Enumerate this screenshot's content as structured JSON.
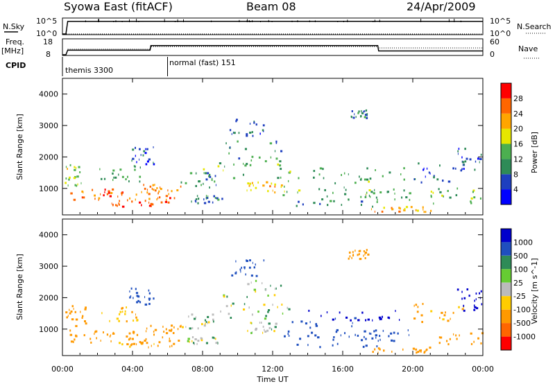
{
  "header": {
    "station": "Syowa East (fitACF)",
    "beam": "Beam 08",
    "date": "24/Apr/2009"
  },
  "top_panels": {
    "nsky_label": "N.Sky",
    "nsky_ticks": [
      "10^5",
      "10^0"
    ],
    "nsearch_label": "N.Search",
    "nsearch_ticks": [
      "10^5",
      "10^0"
    ],
    "freq_label": "Freq.",
    "freq_unit": "[MHz]",
    "freq_ticks": [
      "18",
      "8"
    ],
    "nave_label": "Nave",
    "nave_ticks": [
      "60",
      "0"
    ],
    "cpid_label": "CPID",
    "cpid_segments": [
      {
        "label": "themis 3300",
        "start_hour": 0,
        "end_hour": 6
      },
      {
        "label": "normal (fast) 151",
        "start_hour": 6,
        "end_hour": 24
      }
    ]
  },
  "x_axis": {
    "label": "Time UT",
    "tick_labels": [
      "00:00",
      "04:00",
      "08:00",
      "12:00",
      "16:00",
      "20:00",
      "00:00"
    ],
    "range_hours": [
      0,
      24
    ]
  },
  "colors": {
    "power": [
      "#0000ff",
      "#1e3fbf",
      "#2e8b57",
      "#4caf50",
      "#e6e600",
      "#ffa500",
      "#ff6600",
      "#ff0000"
    ],
    "velocity": [
      "#0000cc",
      "#1f4fbf",
      "#2e8b57",
      "#66cc33",
      "#bbbbbb",
      "#ffcc00",
      "#ff9900",
      "#ff6600",
      "#ff0000"
    ]
  },
  "chart_data": [
    {
      "type": "line",
      "title": "",
      "series": [
        {
          "name": "N.Sky",
          "x": [
            0,
            0.2,
            0.3,
            5,
            10,
            15,
            20,
            23.9,
            24
          ],
          "y": [
            1,
            1,
            20000,
            22000,
            21000,
            22000,
            21000,
            20000,
            20000
          ]
        },
        {
          "name": "N.Search",
          "x": [
            0,
            24
          ],
          "y": [
            1,
            1
          ]
        }
      ],
      "xlim": [
        0,
        24
      ],
      "ylim": [
        1,
        100000
      ],
      "yscale": "log"
    },
    {
      "type": "line",
      "title": "",
      "series": [
        {
          "name": "Freq.",
          "x": [
            0,
            0.2,
            0.3,
            5,
            5.05,
            18,
            18.05,
            24
          ],
          "y": [
            8,
            8,
            11,
            11,
            14,
            14,
            10.5,
            10.5
          ]
        },
        {
          "name": "Nave",
          "x": [
            0.3,
            5,
            5.05,
            18,
            18.05,
            24
          ],
          "y": [
            22,
            22,
            32,
            32,
            27,
            27
          ]
        }
      ],
      "xlim": [
        0,
        24
      ],
      "ylim": [
        8,
        18
      ]
    },
    {
      "type": "heatmap",
      "title": "",
      "ylabel": "Slant Range [km]",
      "xlabel": "",
      "ylim": [
        180,
        4500
      ],
      "yticks": [
        1000,
        2000,
        3000,
        4000
      ],
      "xlim": [
        0,
        24
      ],
      "colorbar": {
        "label": "Power [dB]",
        "ticks": [
          4,
          8,
          12,
          16,
          20,
          24,
          28
        ],
        "range": [
          0,
          32
        ]
      },
      "regions": [
        {
          "t0": 0.1,
          "t1": 1.3,
          "r0": 1100,
          "r1": 1800,
          "v": 17
        },
        {
          "t0": 0.2,
          "t1": 5.0,
          "r0": 800,
          "r1": 1000,
          "v": 25
        },
        {
          "t0": 0.3,
          "t1": 6.6,
          "r0": 600,
          "r1": 800,
          "v": 26
        },
        {
          "t0": 2.8,
          "t1": 6.4,
          "r0": 450,
          "r1": 650,
          "v": 28
        },
        {
          "t0": 4.6,
          "t1": 6.8,
          "r0": 850,
          "r1": 1150,
          "v": 24
        },
        {
          "t0": 2.0,
          "t1": 4.5,
          "r0": 1250,
          "r1": 1750,
          "v": 12
        },
        {
          "t0": 3.8,
          "t1": 5.2,
          "r0": 1800,
          "r1": 2350,
          "v": 6
        },
        {
          "t0": 6.7,
          "t1": 8.8,
          "r0": 1050,
          "r1": 1550,
          "v": 11
        },
        {
          "t0": 7.0,
          "t1": 9.5,
          "r0": 550,
          "r1": 800,
          "v": 9
        },
        {
          "t0": 8.0,
          "t1": 13.0,
          "r0": 1350,
          "r1": 1850,
          "v": 14
        },
        {
          "t0": 9.0,
          "t1": 12.5,
          "r0": 1800,
          "r1": 2700,
          "v": 10
        },
        {
          "t0": 9.5,
          "t1": 11.5,
          "r0": 2700,
          "r1": 3250,
          "v": 7
        },
        {
          "t0": 10.5,
          "t1": 12.5,
          "r0": 900,
          "r1": 1250,
          "v": 21
        },
        {
          "t0": 12.5,
          "t1": 17.5,
          "r0": 800,
          "r1": 1400,
          "v": 13
        },
        {
          "t0": 13.0,
          "t1": 18.0,
          "r0": 450,
          "r1": 900,
          "v": 10
        },
        {
          "t0": 14.0,
          "t1": 19.5,
          "r0": 1300,
          "r1": 1700,
          "v": 12
        },
        {
          "t0": 16.3,
          "t1": 17.4,
          "r0": 3250,
          "r1": 3550,
          "v": 9
        },
        {
          "t0": 17.5,
          "t1": 21.0,
          "r0": 280,
          "r1": 450,
          "v": 22
        },
        {
          "t0": 17.0,
          "t1": 20.0,
          "r0": 650,
          "r1": 1000,
          "v": 13
        },
        {
          "t0": 20.0,
          "t1": 23.0,
          "r0": 1200,
          "r1": 1850,
          "v": 6
        },
        {
          "t0": 21.0,
          "t1": 24.0,
          "r0": 550,
          "r1": 1050,
          "v": 15
        },
        {
          "t0": 22.5,
          "t1": 24.0,
          "r0": 1600,
          "r1": 2300,
          "v": 7
        }
      ]
    },
    {
      "type": "heatmap",
      "title": "",
      "ylabel": "Slant Range [km]",
      "xlabel": "Time UT",
      "ylim": [
        180,
        4500
      ],
      "yticks": [
        1000,
        2000,
        3000,
        4000
      ],
      "xlim": [
        0,
        24
      ],
      "colorbar": {
        "label": "Velocity [m s^-1]",
        "ticks": [
          "1000",
          "500",
          "100",
          "25",
          "-25",
          "-100",
          "-500",
          "-1000"
        ]
      },
      "regions": [
        {
          "t0": 0.1,
          "t1": 1.3,
          "r0": 1100,
          "r1": 1800,
          "v": -300
        },
        {
          "t0": 0.2,
          "t1": 5.0,
          "r0": 800,
          "r1": 1000,
          "v": -200
        },
        {
          "t0": 0.3,
          "t1": 6.6,
          "r0": 600,
          "r1": 800,
          "v": -300
        },
        {
          "t0": 2.8,
          "t1": 6.4,
          "r0": 450,
          "r1": 650,
          "v": -150
        },
        {
          "t0": 4.6,
          "t1": 6.8,
          "r0": 850,
          "r1": 1150,
          "v": -400
        },
        {
          "t0": 2.0,
          "t1": 4.5,
          "r0": 1250,
          "r1": 1750,
          "v": -80
        },
        {
          "t0": 3.8,
          "t1": 5.2,
          "r0": 1800,
          "r1": 2350,
          "v": 300
        },
        {
          "t0": 6.7,
          "t1": 8.8,
          "r0": 1050,
          "r1": 1550,
          "v": 0
        },
        {
          "t0": 7.0,
          "t1": 9.5,
          "r0": 550,
          "r1": 800,
          "v": 0
        },
        {
          "t0": 8.0,
          "t1": 13.0,
          "r0": 1350,
          "r1": 1850,
          "v": 0
        },
        {
          "t0": 9.0,
          "t1": 12.5,
          "r0": 1800,
          "r1": 2700,
          "v": 10
        },
        {
          "t0": 9.5,
          "t1": 11.5,
          "r0": 2700,
          "r1": 3250,
          "v": 200
        },
        {
          "t0": 10.5,
          "t1": 12.5,
          "r0": 900,
          "r1": 1250,
          "v": 0
        },
        {
          "t0": 12.5,
          "t1": 17.5,
          "r0": 800,
          "r1": 1400,
          "v": 150
        },
        {
          "t0": 13.0,
          "t1": 18.0,
          "r0": 450,
          "r1": 900,
          "v": 400
        },
        {
          "t0": 14.0,
          "t1": 19.5,
          "r0": 1300,
          "r1": 1700,
          "v": 600
        },
        {
          "t0": 16.3,
          "t1": 17.4,
          "r0": 3250,
          "r1": 3550,
          "v": -300
        },
        {
          "t0": 17.5,
          "t1": 21.0,
          "r0": 280,
          "r1": 450,
          "v": -250
        },
        {
          "t0": 17.0,
          "t1": 20.0,
          "r0": 650,
          "r1": 1000,
          "v": 300
        },
        {
          "t0": 20.0,
          "t1": 23.0,
          "r0": 1200,
          "r1": 1850,
          "v": -120
        },
        {
          "t0": 21.0,
          "t1": 24.0,
          "r0": 550,
          "r1": 1050,
          "v": -400
        },
        {
          "t0": 22.5,
          "t1": 24.0,
          "r0": 1600,
          "r1": 2300,
          "v": 800
        }
      ]
    }
  ]
}
